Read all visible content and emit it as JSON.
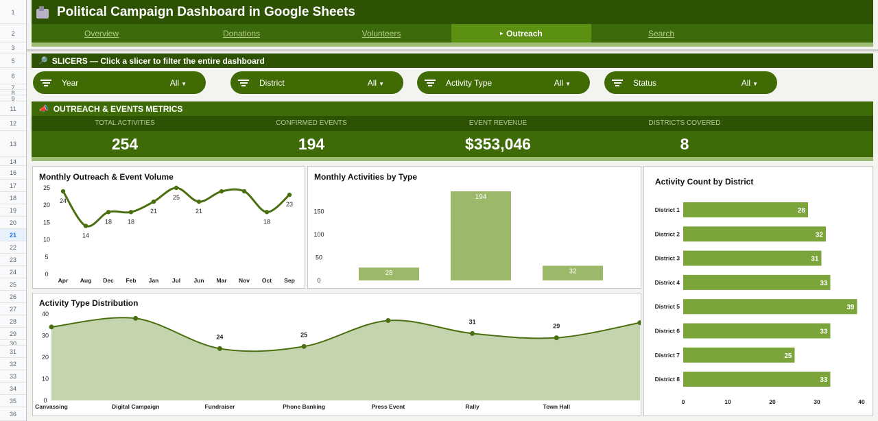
{
  "row_numbers": [
    "1",
    "2",
    "3",
    "5",
    "6",
    "7",
    "8",
    "9",
    "11",
    "12",
    "13",
    "14",
    "16",
    "17",
    "18",
    "19",
    "20",
    "21",
    "22",
    "23",
    "24",
    "25",
    "26",
    "27",
    "28",
    "29",
    "30",
    "31",
    "32",
    "33",
    "34",
    "35",
    "36"
  ],
  "active_row": "21",
  "title": "Political Campaign Dashboard in Google Sheets",
  "tabs": [
    {
      "label": "Overview",
      "active": false
    },
    {
      "label": "Donations",
      "active": false
    },
    {
      "label": "Volunteers",
      "active": false
    },
    {
      "label": "Outreach",
      "active": true,
      "marker": "▸"
    },
    {
      "label": "Search",
      "active": false
    }
  ],
  "slicers": {
    "header": "SLICERS — Click a slicer to filter the entire dashboard",
    "icon": "magnifier-icon",
    "items": [
      {
        "label": "Year",
        "value": "All"
      },
      {
        "label": "District",
        "value": "All"
      },
      {
        "label": "Activity Type",
        "value": "All"
      },
      {
        "label": "Status",
        "value": "All"
      }
    ]
  },
  "metrics": {
    "header": "OUTREACH & EVENTS METRICS",
    "icon": "megaphone-icon",
    "items": [
      {
        "label": "TOTAL ACTIVITIES",
        "value": "254"
      },
      {
        "label": "CONFIRMED EVENTS",
        "value": "194"
      },
      {
        "label": "EVENT REVENUE",
        "value": "$353,046"
      },
      {
        "label": "DISTRICTS COVERED",
        "value": "8"
      }
    ]
  },
  "colors": {
    "dark_green": "#2e5204",
    "mid_green": "#3e6b08",
    "active_tab": "#5b9010",
    "line": "#4a6f10",
    "bar": "#9cb96a",
    "hbar": "#7ba43a",
    "area_fill": "#c3d4ae"
  },
  "chart_data": [
    {
      "type": "line",
      "title": "Monthly Outreach & Event Volume",
      "categories": [
        "Apr",
        "Aug",
        "Dec",
        "Feb",
        "Jan",
        "Jul",
        "Jun",
        "Mar",
        "Nov",
        "Oct",
        "Sep"
      ],
      "values": [
        24,
        14,
        18,
        18,
        21,
        25,
        21,
        24,
        24,
        18,
        23
      ],
      "point_labels": [
        "24",
        "14",
        "18",
        "18",
        "21",
        "25",
        "21",
        "",
        "",
        "18",
        "23"
      ],
      "ylim": [
        0,
        25
      ],
      "yticks": [
        0,
        5,
        10,
        15,
        20,
        25
      ],
      "smooth": true
    },
    {
      "type": "bar",
      "title": "Monthly Activities by Type",
      "categories": [
        "",
        "",
        ""
      ],
      "values": [
        28,
        194,
        32
      ],
      "ylim": [
        0,
        200
      ],
      "yticks": [
        0,
        50,
        100,
        150
      ]
    },
    {
      "type": "bar",
      "orientation": "horizontal",
      "title": "Activity Count by District",
      "categories": [
        "District 1",
        "District 2",
        "District 3",
        "District 4",
        "District 5",
        "District 6",
        "District 7",
        "District 8"
      ],
      "values": [
        28,
        32,
        31,
        33,
        39,
        33,
        25,
        33
      ],
      "xlim": [
        0,
        40
      ],
      "xticks": [
        0,
        10,
        20,
        30,
        40
      ]
    },
    {
      "type": "area",
      "title": "Activity Type Distribution",
      "categories": [
        "Canvassing",
        "Digital Campaign",
        "Fundraiser",
        "Phone Banking",
        "Press Event",
        "Rally",
        "Town Hall",
        ""
      ],
      "values": [
        34,
        38,
        24,
        25,
        37,
        31,
        29,
        36
      ],
      "point_labels": [
        "",
        "",
        "24",
        "25",
        "",
        "31",
        "29",
        ""
      ],
      "ylim": [
        0,
        40
      ],
      "yticks": [
        0,
        10,
        20,
        30,
        40
      ],
      "smooth": true
    }
  ]
}
